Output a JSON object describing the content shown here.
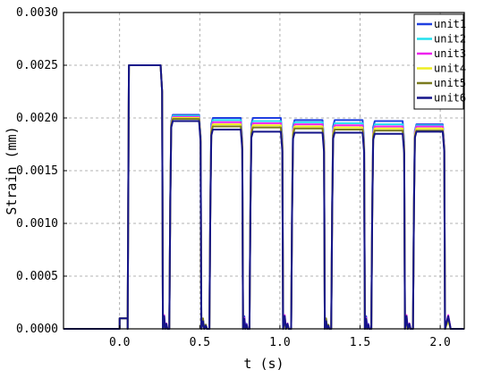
{
  "chart_data": {
    "type": "line",
    "title": "",
    "xlabel": "t (s)",
    "ylabel": "Strain (mm)",
    "xlim": [
      -0.35,
      2.15
    ],
    "ylim": [
      0,
      0.003
    ],
    "grid": true,
    "grid_style": "dashed",
    "legend_position": "top-right",
    "x_ticks": [
      {
        "value": 0.0,
        "label": "0.0"
      },
      {
        "value": 0.5,
        "label": "0.5"
      },
      {
        "value": 1.0,
        "label": "1.0"
      },
      {
        "value": 1.5,
        "label": "1.5"
      },
      {
        "value": 2.0,
        "label": "2.0"
      }
    ],
    "y_ticks": [
      {
        "value": 0.0,
        "label": "0.0000"
      },
      {
        "value": 0.0005,
        "label": "0.0005"
      },
      {
        "value": 0.001,
        "label": "0.0010"
      },
      {
        "value": 0.0015,
        "label": "0.0015"
      },
      {
        "value": 0.002,
        "label": "0.0020"
      },
      {
        "value": 0.0025,
        "label": "0.0025"
      },
      {
        "value": 0.003,
        "label": "0.0030"
      }
    ],
    "series": [
      {
        "name": "unit1",
        "color": "#1f3fe0",
        "levels": [
          0.0025,
          0.00203,
          0.002,
          0.002,
          0.00198,
          0.00198,
          0.00197,
          0.00194
        ]
      },
      {
        "name": "unit2",
        "color": "#22e0ee",
        "levels": [
          0.0025,
          0.00202,
          0.00198,
          0.00197,
          0.00196,
          0.00195,
          0.00194,
          0.00193
        ]
      },
      {
        "name": "unit3",
        "color": "#ee22ee",
        "levels": [
          0.0025,
          0.00201,
          0.00196,
          0.00195,
          0.00194,
          0.00193,
          0.00192,
          0.00192
        ]
      },
      {
        "name": "unit4",
        "color": "#eeee22",
        "levels": [
          0.0025,
          0.002,
          0.00194,
          0.00193,
          0.00192,
          0.00191,
          0.0019,
          0.0019
        ]
      },
      {
        "name": "unit5",
        "color": "#7a7a1e",
        "levels": [
          0.0025,
          0.00199,
          0.00192,
          0.00191,
          0.0019,
          0.00189,
          0.00188,
          0.00188
        ]
      },
      {
        "name": "unit6",
        "color": "#14148a",
        "levels": [
          0.0025,
          0.00197,
          0.00189,
          0.00187,
          0.00186,
          0.00186,
          0.00185,
          0.00187
        ]
      }
    ],
    "pulses": [
      {
        "start": 0.05,
        "end": 0.27
      },
      {
        "start": 0.31,
        "end": 0.51
      },
      {
        "start": 0.56,
        "end": 0.77
      },
      {
        "start": 0.81,
        "end": 1.02
      },
      {
        "start": 1.07,
        "end": 1.28
      },
      {
        "start": 1.32,
        "end": 1.53
      },
      {
        "start": 1.57,
        "end": 1.78
      },
      {
        "start": 1.83,
        "end": 2.03
      }
    ],
    "pre_step": {
      "start": 0.0,
      "end": 0.05,
      "value": 0.0001
    }
  }
}
